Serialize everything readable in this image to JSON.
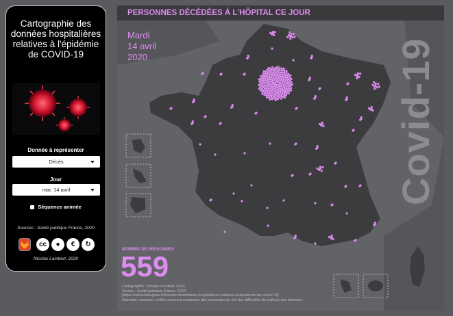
{
  "sidebar": {
    "title": "Cartographie des données hospitalières relatives à l'épidémie de COVID-19",
    "data_label": "Donnée à représenter",
    "data_value": "Décès",
    "day_label": "Jour",
    "day_value": "mar. 14 avril",
    "animated_label": "Séquence animée",
    "sources": "Sources : Santé publique France, 2020",
    "author": "Nicolas Lambert, 2020",
    "icons": [
      "gitlab-icon",
      "cc-icon",
      "by-icon",
      "nc-icon",
      "sa-icon"
    ]
  },
  "header": {
    "title": "PERSONNES DÉCÉDÉES À L'HÔPITAL CE JOUR"
  },
  "date": {
    "weekday": "Mardi",
    "day_month": "14 avril",
    "year": "2020"
  },
  "watermark": "Covid-19",
  "count": {
    "label": "NOMBRE DE PERSONNES",
    "value": "559"
  },
  "credits": [
    "Cartographie : Nicolas Lambert, 2020.",
    "Source : Santé publique France, 2020.",
    "[https://www.data.gouv.fr/fr/datasets/donnees-hospitalieres-relatives-a-lepidemie-de-covid-19/]",
    "Attention, certaines chiffres peuvent comporter des anomalies du fait des difficultés de collecte des données."
  ],
  "colors": {
    "accent": "#dd8cf0",
    "land": "#3c3c3e",
    "sea": "#626366"
  }
}
